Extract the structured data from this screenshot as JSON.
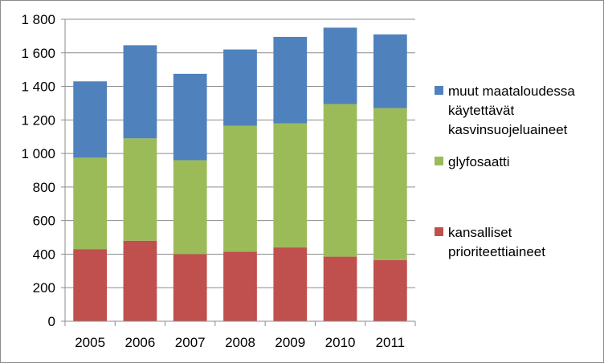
{
  "chart_data": {
    "type": "bar",
    "stacked": true,
    "categories": [
      "2005",
      "2006",
      "2007",
      "2008",
      "2009",
      "2010",
      "2011"
    ],
    "series": [
      {
        "name": "kansalliset prioriteettiaineet",
        "name_lines": [
          "kansalliset",
          "prioriteettiaineet"
        ],
        "color": "#c0504d",
        "values": [
          430,
          480,
          400,
          415,
          440,
          385,
          365
        ]
      },
      {
        "name": "glyfosaatti",
        "name_lines": [
          "glyfosaatti"
        ],
        "color": "#9bbb59",
        "values": [
          545,
          610,
          560,
          750,
          740,
          910,
          905
        ]
      },
      {
        "name": "muut maataloudessa käytettävät kasvinsuojeluaineet",
        "name_lines": [
          "muut maataloudessa",
          "käytettävät",
          "kasvinsuojeluaineet"
        ],
        "color": "#4f81bd",
        "values": [
          455,
          555,
          515,
          455,
          515,
          455,
          440
        ]
      }
    ],
    "ylim": [
      0,
      1800
    ],
    "yticks": [
      0,
      200,
      400,
      600,
      800,
      1000,
      1200,
      1400,
      1600,
      1800
    ],
    "ytick_labels": [
      "0",
      "200",
      "400",
      "600",
      "800",
      "1 000",
      "1 200",
      "1 400",
      "1 600",
      "1 800"
    ],
    "grid": true,
    "legend_position": "right",
    "legend_order": [
      2,
      1,
      0
    ],
    "title": "",
    "xlabel": "",
    "ylabel": ""
  }
}
